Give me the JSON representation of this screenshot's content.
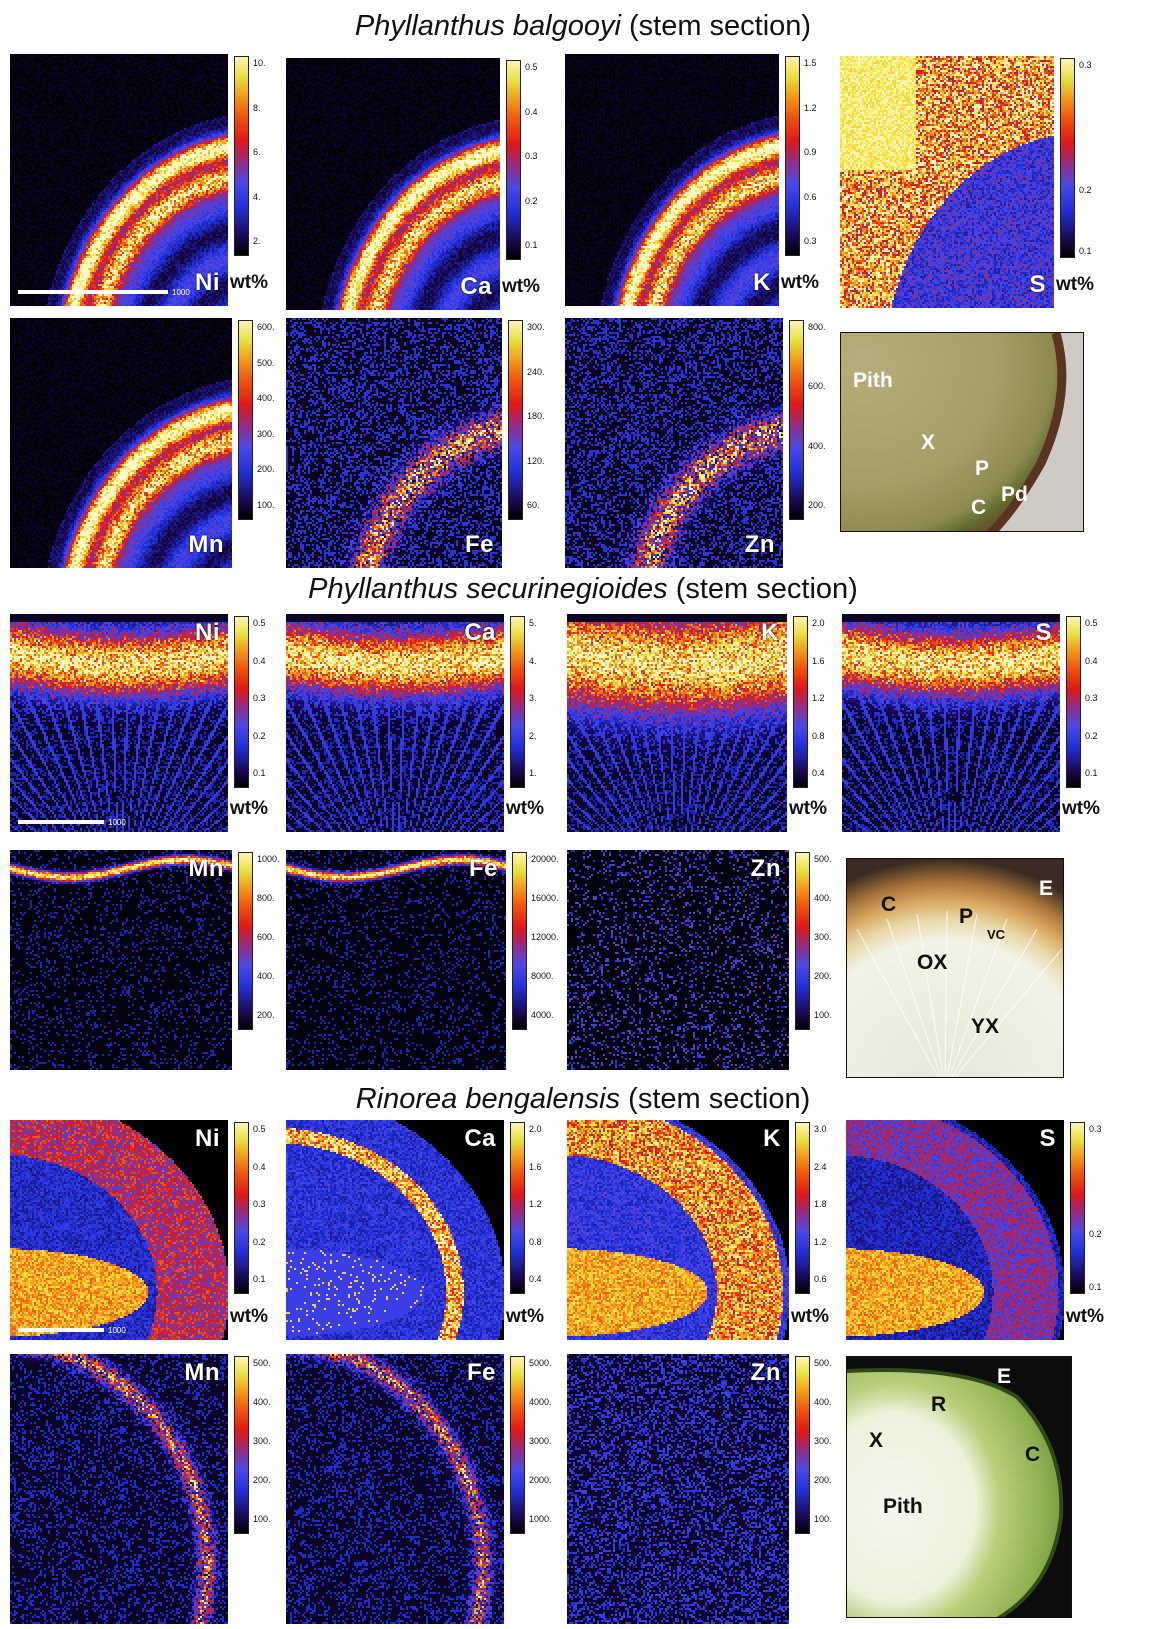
{
  "sections": [
    {
      "title_italic": "Phyllanthus balgooyi",
      "title_rest": " (stem section)",
      "panels": [
        {
          "element": "Ni",
          "unit": "wt%",
          "ticks": [
            "10.",
            "8.",
            "6.",
            "4.",
            "2."
          ],
          "scale": "1000"
        },
        {
          "element": "Ca",
          "unit": "wt%",
          "ticks": [
            "0.5",
            "0.4",
            "0.3",
            "0.2",
            "0.1"
          ]
        },
        {
          "element": "K",
          "unit": "wt%",
          "ticks": [
            "1.5",
            "1.2",
            "0.9",
            "0.6",
            "0.3"
          ]
        },
        {
          "element": "S",
          "unit": "wt%",
          "ticks": [
            "0.3",
            "0.2",
            "0.1"
          ]
        },
        {
          "element": "Mn",
          "ticks": [
            "600.",
            "500.",
            "400.",
            "300.",
            "200.",
            "100."
          ]
        },
        {
          "element": "Fe",
          "ticks": [
            "300.",
            "240.",
            "180.",
            "120.",
            "60."
          ]
        },
        {
          "element": "Zn",
          "ticks": [
            "800.",
            "600.",
            "400.",
            "200."
          ]
        }
      ],
      "photo_labels": [
        "Pith",
        "X",
        "P",
        "C",
        "Pd"
      ]
    },
    {
      "title_italic": "Phyllanthus securinegioides",
      "title_rest": " (stem section)",
      "panels": [
        {
          "element": "Ni",
          "unit": "wt%",
          "ticks": [
            "0.5",
            "0.4",
            "0.3",
            "0.2",
            "0.1"
          ],
          "scale": "1000"
        },
        {
          "element": "Ca",
          "unit": "wt%",
          "ticks": [
            "5.",
            "4.",
            "3.",
            "2.",
            "1."
          ]
        },
        {
          "element": "K",
          "unit": "wt%",
          "ticks": [
            "2.0",
            "1.6",
            "1.2",
            "0.8",
            "0.4"
          ]
        },
        {
          "element": "S",
          "unit": "wt%",
          "ticks": [
            "0.5",
            "0.4",
            "0.3",
            "0.2",
            "0.1"
          ]
        },
        {
          "element": "Mn",
          "ticks": [
            "1000.",
            "800.",
            "600.",
            "400.",
            "200."
          ]
        },
        {
          "element": "Fe",
          "ticks": [
            "20000.",
            "16000.",
            "12000.",
            "8000.",
            "4000."
          ]
        },
        {
          "element": "Zn",
          "ticks": [
            "500.",
            "400.",
            "300.",
            "200.",
            "100."
          ]
        }
      ],
      "photo_labels": [
        "C",
        "P",
        "VC",
        "OX",
        "YX",
        "E"
      ]
    },
    {
      "title_italic": "Rinorea bengalensis",
      "title_rest": " (stem section)",
      "panels": [
        {
          "element": "Ni",
          "unit": "wt%",
          "ticks": [
            "0.5",
            "0.4",
            "0.3",
            "0.2",
            "0.1"
          ],
          "scale": "1000"
        },
        {
          "element": "Ca",
          "unit": "wt%",
          "ticks": [
            "2.0",
            "1.6",
            "1.2",
            "0.8",
            "0.4"
          ]
        },
        {
          "element": "K",
          "unit": "wt%",
          "ticks": [
            "3.0",
            "2.4",
            "1.8",
            "1.2",
            "0.6"
          ]
        },
        {
          "element": "S",
          "unit": "wt%",
          "ticks": [
            "0.3",
            "0.2",
            "0.1"
          ]
        },
        {
          "element": "Mn",
          "ticks": [
            "500.",
            "400.",
            "300.",
            "200.",
            "100."
          ]
        },
        {
          "element": "Fe",
          "ticks": [
            "5000.",
            "4000.",
            "3000.",
            "2000.",
            "1000."
          ]
        },
        {
          "element": "Zn",
          "ticks": [
            "500.",
            "400.",
            "300.",
            "200.",
            "100."
          ]
        }
      ],
      "photo_labels": [
        "E",
        "R",
        "X",
        "C",
        "Pith"
      ]
    }
  ],
  "colors": {
    "map_background": "#000000",
    "colormap": [
      "#000000",
      "#1c0a58",
      "#2330d8",
      "#9a2a7a",
      "#e01818",
      "#f09a18",
      "#e8e040",
      "#fff4b8"
    ]
  }
}
